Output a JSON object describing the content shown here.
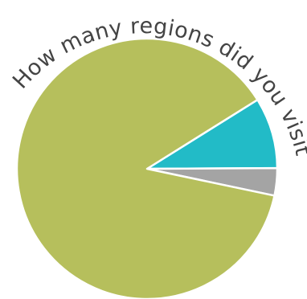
{
  "chart_data": {
    "type": "pie",
    "title": "How many regions did you visit?",
    "slices": [
      {
        "label": "",
        "value": 8.8,
        "color": "#22bbc7"
      },
      {
        "label": "",
        "value": 3.4,
        "color": "#a4a4a4"
      },
      {
        "label": "",
        "value": 87.8,
        "color": "#b6bf5c"
      }
    ],
    "start_angle_deg": -32,
    "legend": "none",
    "title_color": "#444444",
    "separator_color": "#ffffff"
  }
}
